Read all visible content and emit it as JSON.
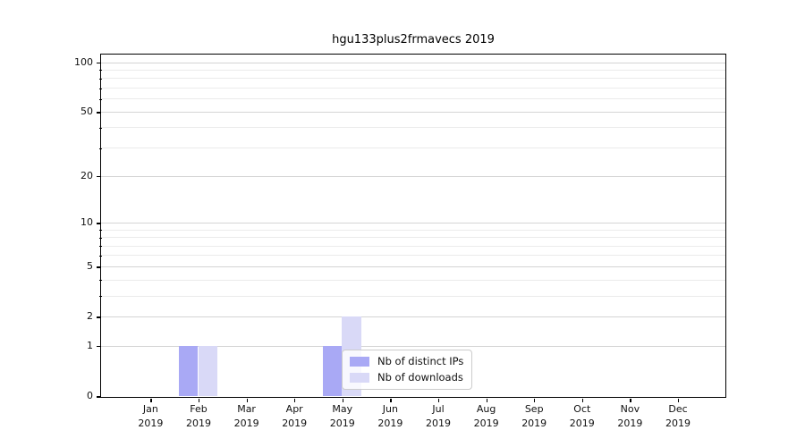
{
  "title": "hgu133plus2frmavecs 2019",
  "chart_data": {
    "type": "bar",
    "title": "hgu133plus2frmavecs 2019",
    "x_months": [
      "Jan",
      "Feb",
      "Mar",
      "Apr",
      "May",
      "Jun",
      "Jul",
      "Aug",
      "Sep",
      "Oct",
      "Nov",
      "Dec"
    ],
    "x_year": "2019",
    "series": [
      {
        "name": "Nb of distinct IPs",
        "color": "#a9a9f5",
        "values": [
          0,
          1,
          0,
          0,
          1,
          0,
          0,
          0,
          0,
          0,
          0,
          0
        ]
      },
      {
        "name": "Nb of downloads",
        "color": "#d9d9f7",
        "values": [
          0,
          1,
          0,
          0,
          2,
          0,
          0,
          0,
          0,
          0,
          0,
          0
        ]
      }
    ],
    "y_scale": "log1p",
    "ylim": [
      0,
      100
    ],
    "y_ticks": [
      0,
      1,
      2,
      5,
      10,
      20,
      50,
      100
    ],
    "y_minor_ticks": [
      3,
      4,
      6,
      7,
      8,
      9,
      30,
      40,
      60,
      70,
      80,
      90
    ],
    "grid": true,
    "legend_position": "lower center",
    "colors": {
      "grid_major": "#d4d4d4",
      "grid_minor": "#ebebeb",
      "spine": "#000000",
      "legend_border": "#cccccc"
    }
  }
}
